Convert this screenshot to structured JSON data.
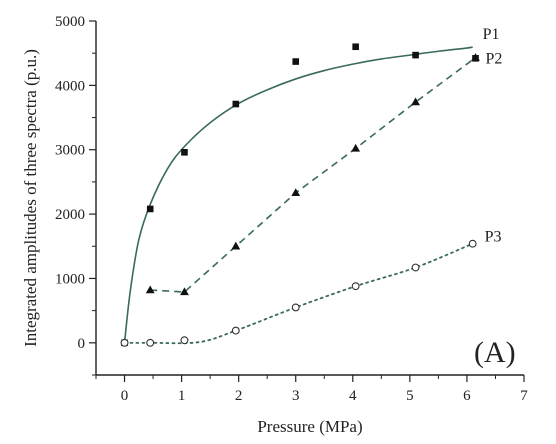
{
  "chart_data": {
    "type": "line",
    "xlabel": "Pressure (MPa)",
    "ylabel": "Integrated amplitudes of three spectra (p.u.)",
    "panel_label": "(A)",
    "xlim": [
      -0.5,
      7
    ],
    "ylim": [
      -500,
      5000
    ],
    "x_ticks": [
      0,
      1,
      2,
      3,
      4,
      5,
      6,
      7
    ],
    "y_ticks": [
      0,
      1000,
      2000,
      3000,
      4000,
      5000
    ],
    "grid": false,
    "series": [
      {
        "name": "P1",
        "marker": "filled-square",
        "line_style": "solid",
        "color": "#3a6a5e",
        "points": [
          {
            "x": 0.0,
            "y": 0
          },
          {
            "x": 0.45,
            "y": 2080
          },
          {
            "x": 1.05,
            "y": 2960
          },
          {
            "x": 1.95,
            "y": 3710
          },
          {
            "x": 3.0,
            "y": 4370
          },
          {
            "x": 4.05,
            "y": 4600
          },
          {
            "x": 5.1,
            "y": 4470
          },
          {
            "x": 6.15,
            "y": 4420
          }
        ],
        "curve": [
          {
            "x": 0.0,
            "y": 0
          },
          {
            "x": 0.1,
            "y": 800
          },
          {
            "x": 0.25,
            "y": 1600
          },
          {
            "x": 0.45,
            "y": 2150
          },
          {
            "x": 0.75,
            "y": 2700
          },
          {
            "x": 1.05,
            "y": 3050
          },
          {
            "x": 1.5,
            "y": 3420
          },
          {
            "x": 2.0,
            "y": 3720
          },
          {
            "x": 2.5,
            "y": 3930
          },
          {
            "x": 3.0,
            "y": 4100
          },
          {
            "x": 3.5,
            "y": 4230
          },
          {
            "x": 4.0,
            "y": 4330
          },
          {
            "x": 4.5,
            "y": 4410
          },
          {
            "x": 5.0,
            "y": 4470
          },
          {
            "x": 5.5,
            "y": 4530
          },
          {
            "x": 6.0,
            "y": 4580
          },
          {
            "x": 6.1,
            "y": 4595
          }
        ]
      },
      {
        "name": "P2",
        "marker": "filled-triangle",
        "line_style": "dashed",
        "color": "#3a6a5e",
        "points": [
          {
            "x": 0.45,
            "y": 820
          },
          {
            "x": 1.05,
            "y": 790
          },
          {
            "x": 1.95,
            "y": 1500
          },
          {
            "x": 3.0,
            "y": 2330
          },
          {
            "x": 4.05,
            "y": 3020
          },
          {
            "x": 5.1,
            "y": 3740
          },
          {
            "x": 6.15,
            "y": 4430
          }
        ],
        "curve": [
          {
            "x": 0.45,
            "y": 820
          },
          {
            "x": 1.05,
            "y": 790
          },
          {
            "x": 1.95,
            "y": 1500
          },
          {
            "x": 3.0,
            "y": 2330
          },
          {
            "x": 4.05,
            "y": 3020
          },
          {
            "x": 5.1,
            "y": 3740
          },
          {
            "x": 6.15,
            "y": 4430
          }
        ]
      },
      {
        "name": "P3",
        "marker": "open-circle",
        "line_style": "dotted",
        "color": "#3a6a5e",
        "points": [
          {
            "x": 0.0,
            "y": 0
          },
          {
            "x": 0.45,
            "y": 0
          },
          {
            "x": 1.05,
            "y": 40
          },
          {
            "x": 1.95,
            "y": 190
          },
          {
            "x": 3.0,
            "y": 550
          },
          {
            "x": 4.05,
            "y": 880
          },
          {
            "x": 5.1,
            "y": 1170
          },
          {
            "x": 6.1,
            "y": 1540
          }
        ],
        "curve": [
          {
            "x": 0.0,
            "y": 0
          },
          {
            "x": 0.45,
            "y": 0
          },
          {
            "x": 1.3,
            "y": 10
          },
          {
            "x": 1.95,
            "y": 190
          },
          {
            "x": 3.0,
            "y": 550
          },
          {
            "x": 4.05,
            "y": 880
          },
          {
            "x": 5.1,
            "y": 1170
          },
          {
            "x": 6.1,
            "y": 1540
          }
        ]
      }
    ]
  }
}
